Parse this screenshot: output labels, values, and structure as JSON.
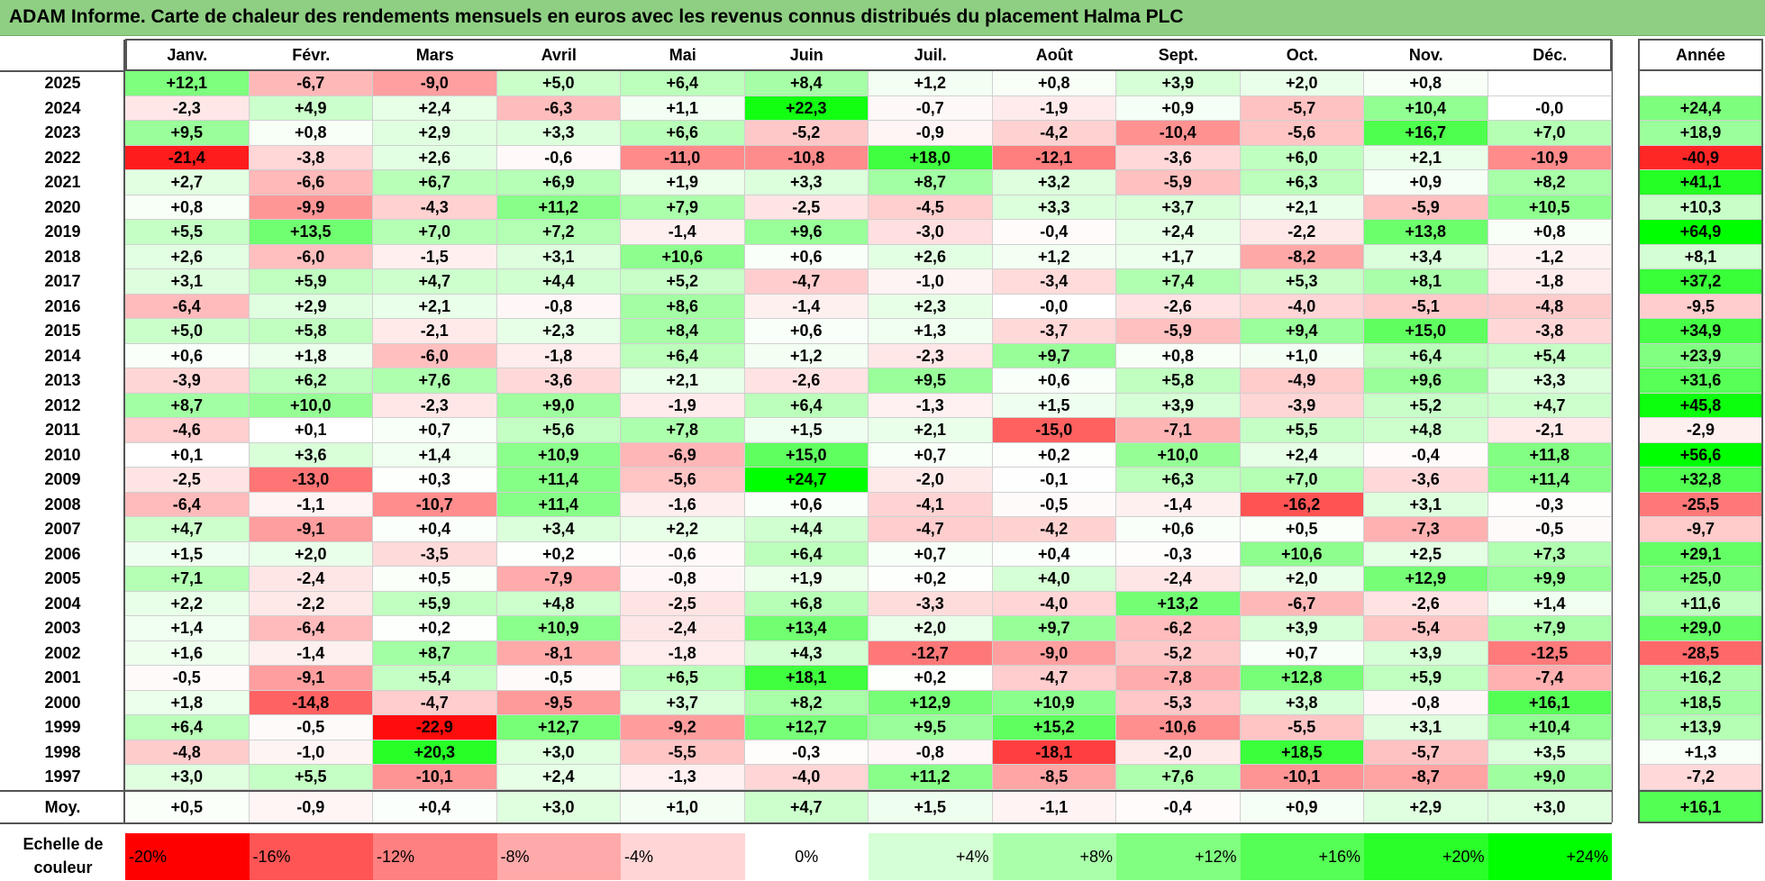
{
  "title": "ADAM Informe. Carte de chaleur des rendements mensuels en euros avec les revenus connus distribués du placement Halma PLC",
  "months": [
    "Janv.",
    "Févr.",
    "Mars",
    "Avril",
    "Mai",
    "Juin",
    "Juil.",
    "Août",
    "Sept.",
    "Oct.",
    "Nov.",
    "Déc."
  ],
  "year_header": "Année",
  "avg_label": "Moy.",
  "scale_label_line1": "Echelle de",
  "scale_label_line2": "couleur",
  "colors": {
    "negative_max": "#ff0000",
    "neutral": "#ffffff",
    "positive_max": "#00ff00",
    "title_bar": "#8fcf83"
  },
  "chart_data": {
    "type": "heatmap",
    "title": "ADAM Informe. Carte de chaleur des rendements mensuels en euros avec les revenus connus distribués du placement Halma PLC",
    "years": [
      "2025",
      "2024",
      "2023",
      "2022",
      "2021",
      "2020",
      "2019",
      "2018",
      "2017",
      "2016",
      "2015",
      "2014",
      "2013",
      "2012",
      "2011",
      "2010",
      "2009",
      "2008",
      "2007",
      "2006",
      "2005",
      "2004",
      "2003",
      "2002",
      "2001",
      "2000",
      "1999",
      "1998",
      "1997"
    ],
    "values": [
      [
        "+12,1",
        "-6,7",
        "-9,0",
        "+5,0",
        "+6,4",
        "+8,4",
        "+1,2",
        "+0,8",
        "+3,9",
        "+2,0",
        "+0,8",
        ""
      ],
      [
        "-2,3",
        "+4,9",
        "+2,4",
        "-6,3",
        "+1,1",
        "+22,3",
        "-0,7",
        "-1,9",
        "+0,9",
        "-5,7",
        "+10,4",
        "-0,0"
      ],
      [
        "+9,5",
        "+0,8",
        "+2,9",
        "+3,3",
        "+6,6",
        "-5,2",
        "-0,9",
        "-4,2",
        "-10,4",
        "-5,6",
        "+16,7",
        "+7,0"
      ],
      [
        "-21,4",
        "-3,8",
        "+2,6",
        "-0,6",
        "-11,0",
        "-10,8",
        "+18,0",
        "-12,1",
        "-3,6",
        "+6,0",
        "+2,1",
        "-10,9"
      ],
      [
        "+2,7",
        "-6,6",
        "+6,7",
        "+6,9",
        "+1,9",
        "+3,3",
        "+8,7",
        "+3,2",
        "-5,9",
        "+6,3",
        "+0,9",
        "+8,2"
      ],
      [
        "+0,8",
        "-9,9",
        "-4,3",
        "+11,2",
        "+7,9",
        "-2,5",
        "-4,5",
        "+3,3",
        "+3,7",
        "+2,1",
        "-5,9",
        "+10,5"
      ],
      [
        "+5,5",
        "+13,5",
        "+7,0",
        "+7,2",
        "-1,4",
        "+9,6",
        "-3,0",
        "-0,4",
        "+2,4",
        "-2,2",
        "+13,8",
        "+0,8"
      ],
      [
        "+2,6",
        "-6,0",
        "-1,5",
        "+3,1",
        "+10,6",
        "+0,6",
        "+2,6",
        "+1,2",
        "+1,7",
        "-8,2",
        "+3,4",
        "-1,2"
      ],
      [
        "+3,1",
        "+5,9",
        "+4,7",
        "+4,4",
        "+5,2",
        "-4,7",
        "-1,0",
        "-3,4",
        "+7,4",
        "+5,3",
        "+8,1",
        "-1,8"
      ],
      [
        "-6,4",
        "+2,9",
        "+2,1",
        "-0,8",
        "+8,6",
        "-1,4",
        "+2,3",
        "-0,0",
        "-2,6",
        "-4,0",
        "-5,1",
        "-4,8"
      ],
      [
        "+5,0",
        "+5,8",
        "-2,1",
        "+2,3",
        "+8,4",
        "+0,6",
        "+1,3",
        "-3,7",
        "-5,9",
        "+9,4",
        "+15,0",
        "-3,8"
      ],
      [
        "+0,6",
        "+1,8",
        "-6,0",
        "-1,8",
        "+6,4",
        "+1,2",
        "-2,3",
        "+9,7",
        "+0,8",
        "+1,0",
        "+6,4",
        "+5,4"
      ],
      [
        "-3,9",
        "+6,2",
        "+7,6",
        "-3,6",
        "+2,1",
        "-2,6",
        "+9,5",
        "+0,6",
        "+5,8",
        "-4,9",
        "+9,6",
        "+3,3"
      ],
      [
        "+8,7",
        "+10,0",
        "-2,3",
        "+9,0",
        "-1,9",
        "+6,4",
        "-1,3",
        "+1,5",
        "+3,9",
        "-3,9",
        "+5,2",
        "+4,7"
      ],
      [
        "-4,6",
        "+0,1",
        "+0,7",
        "+5,6",
        "+7,8",
        "+1,5",
        "+2,1",
        "-15,0",
        "-7,1",
        "+5,5",
        "+4,8",
        "-2,1"
      ],
      [
        "+0,1",
        "+3,6",
        "+1,4",
        "+10,9",
        "-6,9",
        "+15,0",
        "+0,7",
        "+0,2",
        "+10,0",
        "+2,4",
        "-0,4",
        "+11,8"
      ],
      [
        "-2,5",
        "-13,0",
        "+0,3",
        "+11,4",
        "-5,6",
        "+24,7",
        "-2,0",
        "-0,1",
        "+6,3",
        "+7,0",
        "-3,6",
        "+11,4"
      ],
      [
        "-6,4",
        "-1,1",
        "-10,7",
        "+11,4",
        "-1,6",
        "+0,6",
        "-4,1",
        "-0,5",
        "-1,4",
        "-16,2",
        "+3,1",
        "-0,3"
      ],
      [
        "+4,7",
        "-9,1",
        "+0,4",
        "+3,4",
        "+2,2",
        "+4,4",
        "-4,7",
        "-4,2",
        "+0,6",
        "+0,5",
        "-7,3",
        "-0,5"
      ],
      [
        "+1,5",
        "+2,0",
        "-3,5",
        "+0,2",
        "-0,6",
        "+6,4",
        "+0,7",
        "+0,4",
        "-0,3",
        "+10,6",
        "+2,5",
        "+7,3"
      ],
      [
        "+7,1",
        "-2,4",
        "+0,5",
        "-7,9",
        "-0,8",
        "+1,9",
        "+0,2",
        "+4,0",
        "-2,4",
        "+2,0",
        "+12,9",
        "+9,9"
      ],
      [
        "+2,2",
        "-2,2",
        "+5,9",
        "+4,8",
        "-2,5",
        "+6,8",
        "-3,3",
        "-4,0",
        "+13,2",
        "-6,7",
        "-2,6",
        "+1,4"
      ],
      [
        "+1,4",
        "-6,4",
        "+0,2",
        "+10,9",
        "-2,4",
        "+13,4",
        "+2,0",
        "+9,7",
        "-6,2",
        "+3,9",
        "-5,4",
        "+7,9"
      ],
      [
        "+1,6",
        "-1,4",
        "+8,7",
        "-8,1",
        "-1,8",
        "+4,3",
        "-12,7",
        "-9,0",
        "-5,2",
        "+0,7",
        "+3,9",
        "-12,5"
      ],
      [
        "-0,5",
        "-9,1",
        "+5,4",
        "-0,5",
        "+6,5",
        "+18,1",
        "+0,2",
        "-4,7",
        "-7,8",
        "+12,8",
        "+5,9",
        "-7,4"
      ],
      [
        "+1,8",
        "-14,8",
        "-4,7",
        "-9,5",
        "+3,7",
        "+8,2",
        "+12,9",
        "+10,9",
        "-5,3",
        "+3,8",
        "-0,8",
        "+16,1"
      ],
      [
        "+6,4",
        "-0,5",
        "-22,9",
        "+12,7",
        "-9,2",
        "+12,7",
        "+9,5",
        "+15,2",
        "-10,6",
        "-5,5",
        "+3,1",
        "+10,4"
      ],
      [
        "-4,8",
        "-1,0",
        "+20,3",
        "+3,0",
        "-5,5",
        "-0,3",
        "-0,8",
        "-18,1",
        "-2,0",
        "+18,5",
        "-5,7",
        "+3,5"
      ],
      [
        "+3,0",
        "+5,5",
        "-10,1",
        "+2,4",
        "-1,3",
        "-4,0",
        "+11,2",
        "-8,5",
        "+7,6",
        "-10,1",
        "-8,7",
        "+9,0"
      ]
    ],
    "annual": [
      "",
      "+24,4",
      "+18,9",
      "-40,9",
      "+41,1",
      "+10,3",
      "+64,9",
      "+8,1",
      "+37,2",
      "-9,5",
      "+34,9",
      "+23,9",
      "+31,6",
      "+45,8",
      "-2,9",
      "+56,6",
      "+32,8",
      "-25,5",
      "-9,7",
      "+29,1",
      "+25,0",
      "+11,6",
      "+29,0",
      "-28,5",
      "+16,2",
      "+18,5",
      "+13,9",
      "+1,3",
      "-7,2"
    ],
    "averages": [
      "+0,5",
      "-0,9",
      "+0,4",
      "+3,0",
      "+1,0",
      "+4,7",
      "+1,5",
      "-1,1",
      "-0,4",
      "+0,9",
      "+2,9",
      "+3,0"
    ],
    "average_annual": "+16,1",
    "scale_steps": [
      "-20%",
      "-16%",
      "-12%",
      "-8%",
      "-4%",
      "0%",
      "+4%",
      "+8%",
      "+12%",
      "+16%",
      "+20%",
      "+24%"
    ],
    "scale_min": -24,
    "scale_max": 24
  }
}
